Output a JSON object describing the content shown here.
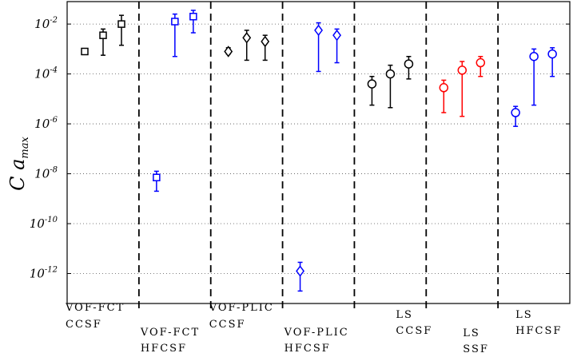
{
  "chart_data": {
    "type": "scatter",
    "yscale": "log",
    "ylim_log10": [
      -13.2,
      -1.1
    ],
    "ylabel": {
      "main": "C a",
      "sub": "max"
    },
    "yticks": [
      {
        "base": "10",
        "exp": "-2",
        "value": -2
      },
      {
        "base": "10",
        "exp": "-4",
        "value": -4
      },
      {
        "base": "10",
        "exp": "-6",
        "value": -6
      },
      {
        "base": "10",
        "exp": "-8",
        "value": -8
      },
      {
        "base": "10",
        "exp": "-10",
        "value": -10
      },
      {
        "base": "10",
        "exp": "-12",
        "value": -12
      }
    ],
    "grid": true,
    "groups": [
      {
        "label": [
          "VOF-FCT",
          "CCSF"
        ],
        "color": "#000000",
        "marker": "square",
        "points": [
          {
            "center": -3.1,
            "low": -3.2,
            "high": -3.0
          },
          {
            "center": -2.45,
            "low": -3.25,
            "high": -2.2
          },
          {
            "center": -2.0,
            "low": -2.85,
            "high": -1.65
          }
        ]
      },
      {
        "label": [
          "VOF-FCT",
          "HFCSF"
        ],
        "color": "#0000ff",
        "marker": "square",
        "points": [
          {
            "center": -8.15,
            "low": -8.7,
            "high": -7.9
          },
          {
            "center": -1.9,
            "low": -3.3,
            "high": -1.6
          },
          {
            "center": -1.7,
            "low": -2.35,
            "high": -1.45
          }
        ]
      },
      {
        "label": [
          "VOF-PLIC",
          "CCSF"
        ],
        "color": "#000000",
        "marker": "diamond",
        "points": [
          {
            "center": -3.1,
            "low": -3.2,
            "high": -2.95
          },
          {
            "center": -2.55,
            "low": -3.45,
            "high": -2.25
          },
          {
            "center": -2.7,
            "low": -3.45,
            "high": -2.45
          }
        ]
      },
      {
        "label": [
          "VOF-PLIC",
          "HFCSF"
        ],
        "color": "#0000ff",
        "marker": "diamond",
        "points": [
          {
            "center": -11.9,
            "low": -12.7,
            "high": -11.55
          },
          {
            "center": -2.25,
            "low": -3.9,
            "high": -1.95
          },
          {
            "center": -2.45,
            "low": -3.55,
            "high": -2.2
          }
        ]
      },
      {
        "label": [
          "LS",
          "CCSF"
        ],
        "color": "#000000",
        "marker": "circle",
        "points": [
          {
            "center": -4.4,
            "low": -5.25,
            "high": -4.1
          },
          {
            "center": -4.0,
            "low": -5.35,
            "high": -3.65
          },
          {
            "center": -3.6,
            "low": -4.2,
            "high": -3.3
          }
        ]
      },
      {
        "label": [
          "LS",
          "SSF"
        ],
        "color": "#ff0000",
        "marker": "circle",
        "points": [
          {
            "center": -4.55,
            "low": -5.55,
            "high": -4.25
          },
          {
            "center": -3.85,
            "low": -5.7,
            "high": -3.5
          },
          {
            "center": -3.55,
            "low": -4.1,
            "high": -3.3
          }
        ]
      },
      {
        "label": [
          "LS",
          "HFCSF"
        ],
        "color": "#0000ff",
        "marker": "circle",
        "points": [
          {
            "center": -5.55,
            "low": -6.1,
            "high": -5.3
          },
          {
            "center": -3.3,
            "low": -5.25,
            "high": -3.0
          },
          {
            "center": -3.2,
            "low": -4.1,
            "high": -2.95
          }
        ]
      }
    ]
  }
}
